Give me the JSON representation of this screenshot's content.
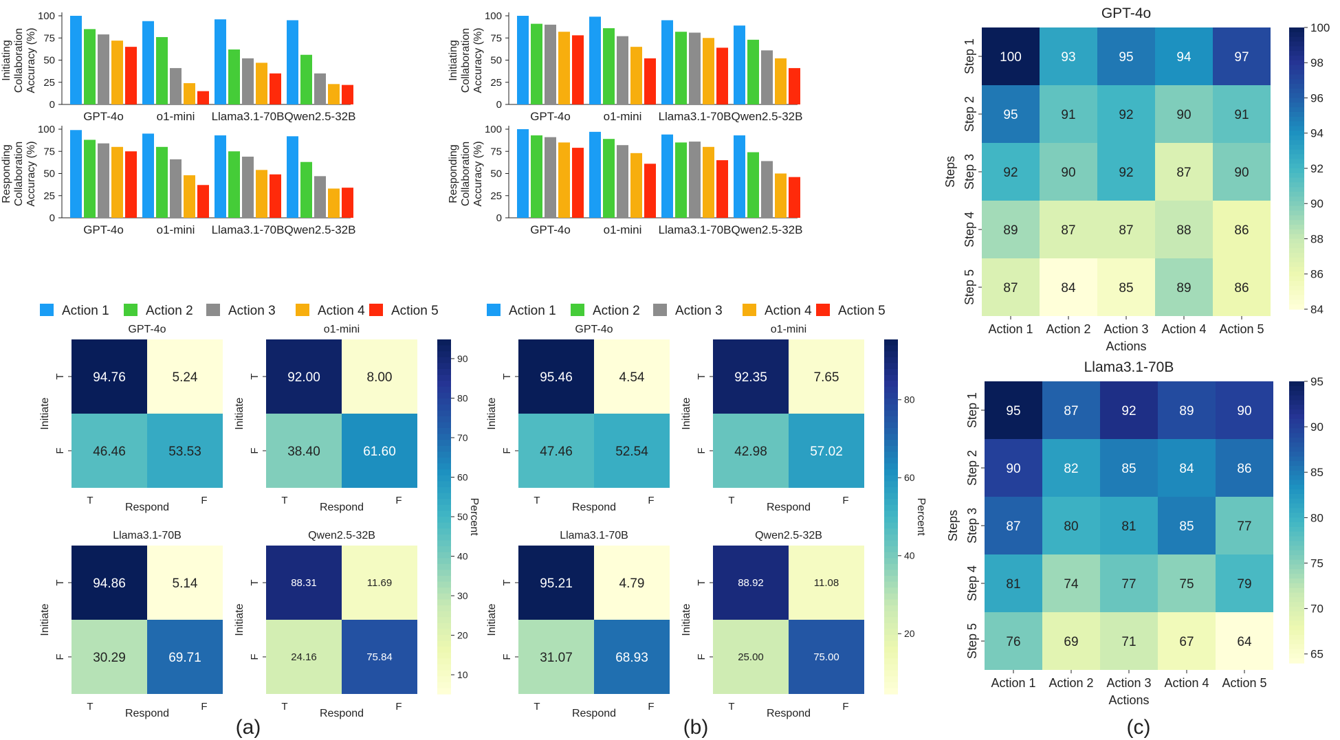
{
  "figure": {
    "panel_labels": [
      "(a)",
      "(b)",
      "(c)"
    ]
  },
  "colors": {
    "actions": [
      "#1a9df5",
      "#45cc38",
      "#8c8c8c",
      "#f7ae0e",
      "#ff2a0a"
    ]
  },
  "chart_data": [
    {
      "id": "a_initiating",
      "type": "bar",
      "ylabel": "Initiating Collaboration Accuracy (%)",
      "ylabel_lines": [
        "Initiating",
        "Collaboration",
        "Accuracy (%)"
      ],
      "categories": [
        "GPT-4o",
        "o1-mini",
        "Llama3.1-70B",
        "Qwen2.5-32B"
      ],
      "ylim": [
        0,
        100
      ],
      "yticks": [
        "0",
        "25",
        "50",
        "75",
        "100"
      ],
      "series": [
        {
          "name": "Action 1",
          "values": [
            100,
            94,
            96,
            95
          ]
        },
        {
          "name": "Action 2",
          "values": [
            85,
            76,
            62,
            56
          ]
        },
        {
          "name": "Action 3",
          "values": [
            79,
            41,
            52,
            35
          ]
        },
        {
          "name": "Action 4",
          "values": [
            72,
            24,
            47,
            23
          ]
        },
        {
          "name": "Action 5",
          "values": [
            65,
            15,
            35,
            22
          ]
        }
      ]
    },
    {
      "id": "a_responding",
      "type": "bar",
      "ylabel": "Responding Collaboration Accuracy (%)",
      "ylabel_lines": [
        "Responding",
        "Collaboration",
        "Accuracy (%)"
      ],
      "categories": [
        "GPT-4o",
        "o1-mini",
        "Llama3.1-70B",
        "Qwen2.5-32B"
      ],
      "ylim": [
        0,
        100
      ],
      "yticks": [
        "0",
        "25",
        "50",
        "75",
        "100"
      ],
      "series": [
        {
          "name": "Action 1",
          "values": [
            99,
            95,
            93,
            92
          ]
        },
        {
          "name": "Action 2",
          "values": [
            88,
            80,
            75,
            63
          ]
        },
        {
          "name": "Action 3",
          "values": [
            84,
            66,
            69,
            47
          ]
        },
        {
          "name": "Action 4",
          "values": [
            80,
            48,
            54,
            33
          ]
        },
        {
          "name": "Action 5",
          "values": [
            75,
            37,
            49,
            34
          ]
        }
      ]
    },
    {
      "id": "b_initiating",
      "type": "bar",
      "ylabel": "Initiating Collaboration Accuracy (%)",
      "ylabel_lines": [
        "Initiating",
        "Collaboration",
        "Accuracy (%)"
      ],
      "categories": [
        "GPT-4o",
        "o1-mini",
        "Llama3.1-70B",
        "Qwen2.5-32B"
      ],
      "ylim": [
        0,
        100
      ],
      "yticks": [
        "0",
        "25",
        "50",
        "75",
        "100"
      ],
      "series": [
        {
          "name": "Action 1",
          "values": [
            100,
            99,
            95,
            89
          ]
        },
        {
          "name": "Action 2",
          "values": [
            91,
            86,
            82,
            73
          ]
        },
        {
          "name": "Action 3",
          "values": [
            90,
            77,
            81,
            61
          ]
        },
        {
          "name": "Action 4",
          "values": [
            82,
            65,
            75,
            52
          ]
        },
        {
          "name": "Action 5",
          "values": [
            78,
            52,
            64,
            41
          ]
        }
      ]
    },
    {
      "id": "b_responding",
      "type": "bar",
      "ylabel": "Responding Collaboration Accuracy (%)",
      "ylabel_lines": [
        "Responding",
        "Collaboration",
        "Accuracy (%)"
      ],
      "categories": [
        "GPT-4o",
        "o1-mini",
        "Llama3.1-70B",
        "Qwen2.5-32B"
      ],
      "ylim": [
        0,
        100
      ],
      "yticks": [
        "0",
        "25",
        "50",
        "75",
        "100"
      ],
      "series": [
        {
          "name": "Action 1",
          "values": [
            100,
            97,
            94,
            93
          ]
        },
        {
          "name": "Action 2",
          "values": [
            93,
            89,
            85,
            74
          ]
        },
        {
          "name": "Action 3",
          "values": [
            91,
            82,
            86,
            64
          ]
        },
        {
          "name": "Action 4",
          "values": [
            85,
            73,
            80,
            50
          ]
        },
        {
          "name": "Action 5",
          "values": [
            79,
            61,
            65,
            46
          ]
        }
      ]
    },
    {
      "id": "a_confusion",
      "type": "heatmap",
      "colormap": "YlGnBu",
      "range": [
        5.14,
        94.86
      ],
      "colorbar_label": "Percent",
      "colorbar_ticks": [
        "10",
        "20",
        "30",
        "40",
        "50",
        "60",
        "70",
        "80",
        "90"
      ],
      "xlabel": "Respond",
      "ylabel": "Initiate",
      "xticks": [
        "T",
        "F"
      ],
      "yticks": [
        "T",
        "F"
      ],
      "matrices": [
        {
          "title": "GPT-4o",
          "values": [
            [
              "94.76",
              "5.24"
            ],
            [
              "46.46",
              "53.53"
            ]
          ]
        },
        {
          "title": "o1-mini",
          "values": [
            [
              "92.00",
              "8.00"
            ],
            [
              "38.40",
              "61.60"
            ]
          ]
        },
        {
          "title": "Llama3.1-70B",
          "values": [
            [
              "94.86",
              "5.14"
            ],
            [
              "30.29",
              "69.71"
            ]
          ]
        },
        {
          "title": "Qwen2.5-32B",
          "values": [
            [
              "88.31",
              "11.69"
            ],
            [
              "24.16",
              "75.84"
            ]
          ]
        }
      ]
    },
    {
      "id": "b_confusion",
      "type": "heatmap",
      "colormap": "YlGnBu",
      "range": [
        4.54,
        95.46
      ],
      "colorbar_label": "Percent",
      "colorbar_ticks": [
        "20",
        "40",
        "60",
        "80"
      ],
      "xlabel": "Respond",
      "ylabel": "Initiate",
      "xticks": [
        "T",
        "F"
      ],
      "yticks": [
        "T",
        "F"
      ],
      "matrices": [
        {
          "title": "GPT-4o",
          "values": [
            [
              "95.46",
              "4.54"
            ],
            [
              "47.46",
              "52.54"
            ]
          ]
        },
        {
          "title": "o1-mini",
          "values": [
            [
              "92.35",
              "7.65"
            ],
            [
              "42.98",
              "57.02"
            ]
          ]
        },
        {
          "title": "Llama3.1-70B",
          "values": [
            [
              "95.21",
              "4.79"
            ],
            [
              "31.07",
              "68.93"
            ]
          ]
        },
        {
          "title": "Qwen2.5-32B",
          "values": [
            [
              "88.92",
              "11.08"
            ],
            [
              "25.00",
              "75.00"
            ]
          ]
        }
      ]
    },
    {
      "id": "c_gpt4o",
      "type": "heatmap",
      "colormap": "YlGnBu",
      "title": "GPT-4o",
      "range": [
        84,
        100
      ],
      "colorbar_ticks": [
        "84",
        "86",
        "88",
        "90",
        "92",
        "94",
        "96",
        "98",
        "100"
      ],
      "xlabel": "Actions",
      "ylabel": "Steps",
      "xticks": [
        "Action 1",
        "Action 2",
        "Action 3",
        "Action 4",
        "Action 5"
      ],
      "yticks": [
        "Step 1",
        "Step 2",
        "Step 3",
        "Step 4",
        "Step 5"
      ],
      "values": [
        [
          100,
          93,
          95,
          94,
          97
        ],
        [
          95,
          91,
          92,
          90,
          91
        ],
        [
          92,
          90,
          92,
          87,
          90
        ],
        [
          89,
          87,
          87,
          88,
          86
        ],
        [
          87,
          84,
          85,
          89,
          86
        ]
      ]
    },
    {
      "id": "c_llama",
      "type": "heatmap",
      "colormap": "YlGnBu",
      "title": "Llama3.1-70B",
      "range": [
        64,
        95
      ],
      "colorbar_ticks": [
        "65",
        "70",
        "75",
        "80",
        "85",
        "90",
        "95"
      ],
      "xlabel": "Actions",
      "ylabel": "Steps",
      "xticks": [
        "Action 1",
        "Action 2",
        "Action 3",
        "Action 4",
        "Action 5"
      ],
      "yticks": [
        "Step 1",
        "Step 2",
        "Step 3",
        "Step 4",
        "Step 5"
      ],
      "values": [
        [
          95,
          87,
          92,
          89,
          90
        ],
        [
          90,
          82,
          85,
          84,
          86
        ],
        [
          87,
          80,
          81,
          85,
          77
        ],
        [
          81,
          74,
          77,
          75,
          79
        ],
        [
          76,
          69,
          71,
          67,
          64
        ]
      ]
    }
  ]
}
